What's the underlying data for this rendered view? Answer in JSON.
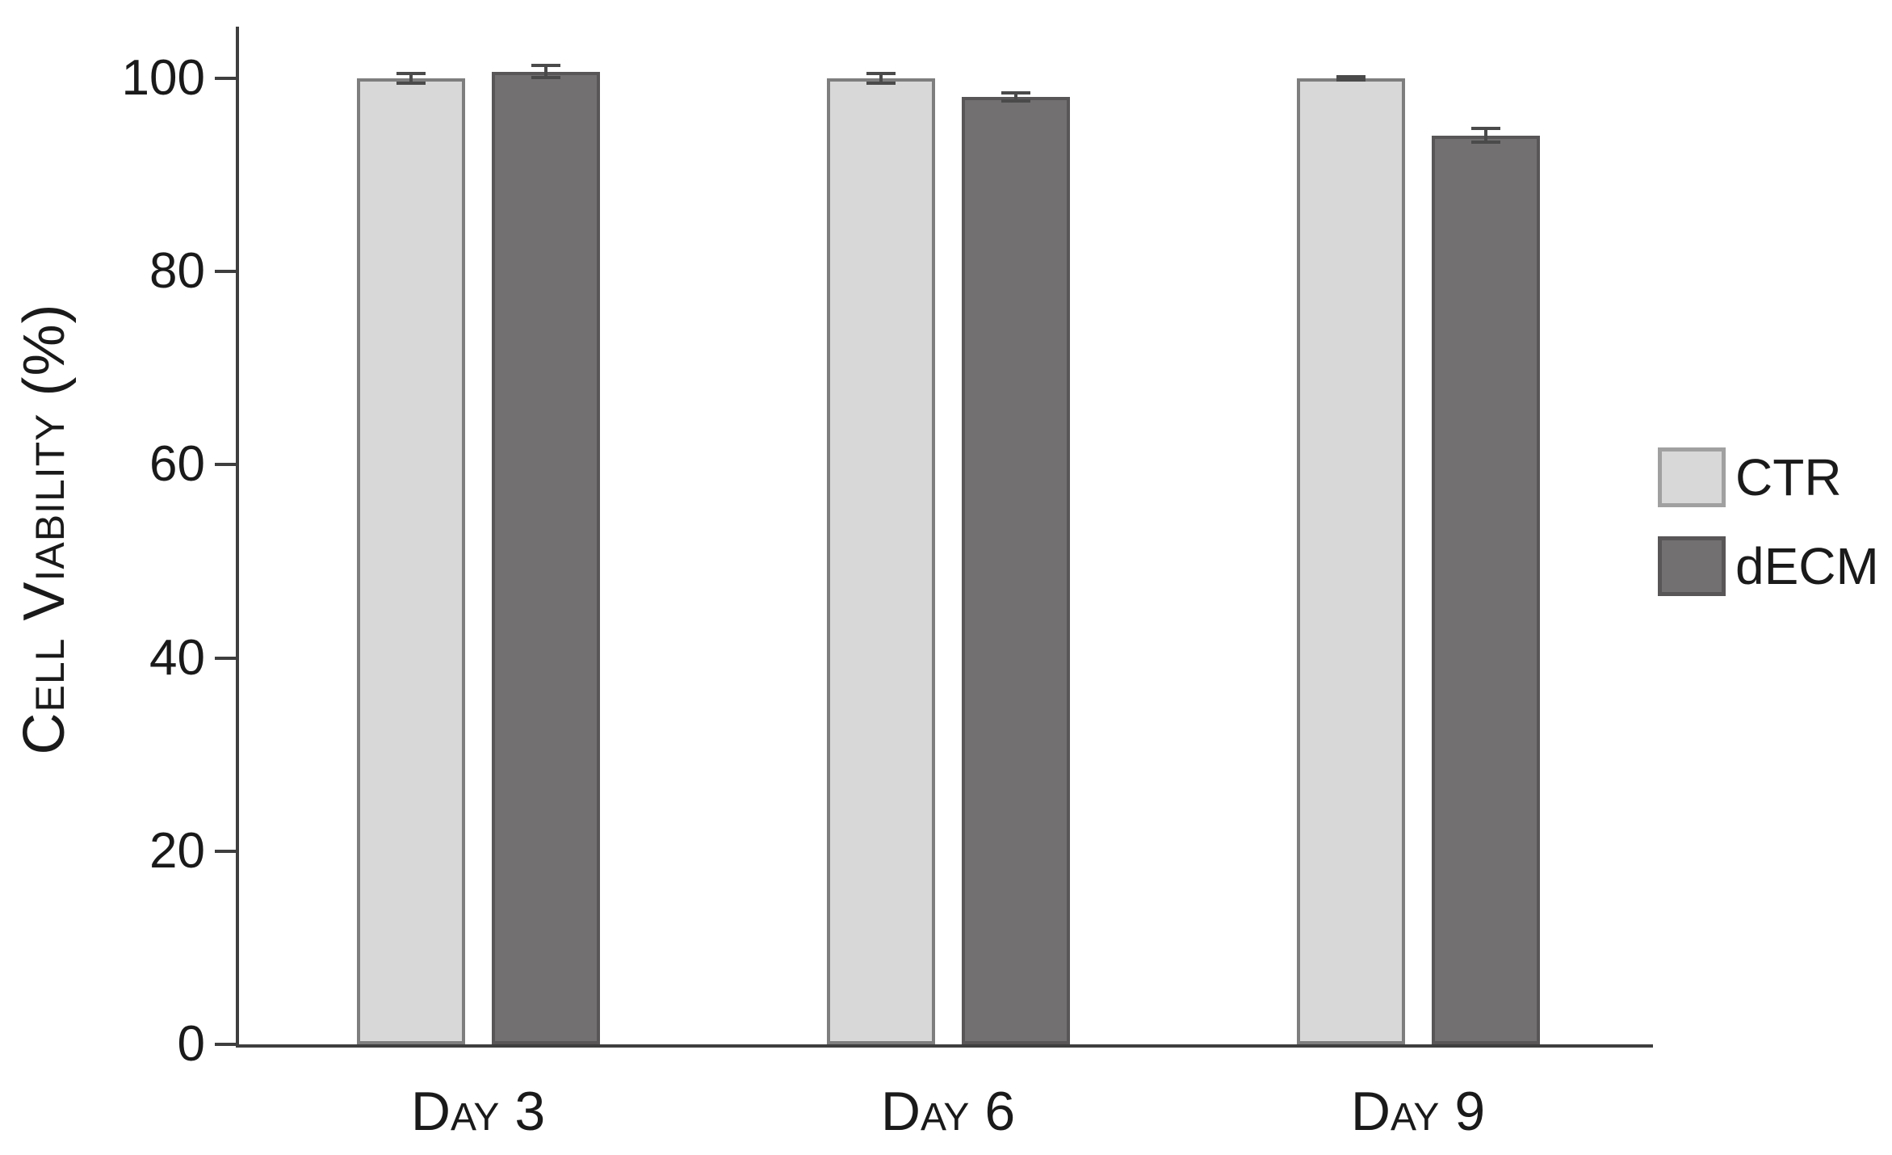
{
  "figure": {
    "background": "#ffffff"
  },
  "chart_data": {
    "type": "bar",
    "title": "",
    "xlabel": "",
    "ylabel": "Cell Viability (%)",
    "categories": [
      "Day 3",
      "Day 6",
      "Day 9"
    ],
    "yticks": [
      0,
      20,
      40,
      60,
      80,
      100
    ],
    "ylim": [
      0,
      105
    ],
    "grid": false,
    "legend_position": "right-center",
    "error_bars": true,
    "series": [
      {
        "name": "CTR",
        "values": [
          100.0,
          100.0,
          100.0
        ],
        "errors": [
          0.5,
          0.5,
          0.15
        ],
        "fill": "#d8d8d8",
        "border": "#7e7e7e"
      },
      {
        "name": "dECM",
        "values": [
          100.7,
          98.1,
          94.1
        ],
        "errors": [
          0.6,
          0.4,
          0.7
        ],
        "fill": "#737071",
        "border": "#595657"
      }
    ],
    "colors": {
      "axis": "#3e3e3e",
      "error_bar": "#4a4a4a",
      "text": "#1a1a1a"
    }
  }
}
